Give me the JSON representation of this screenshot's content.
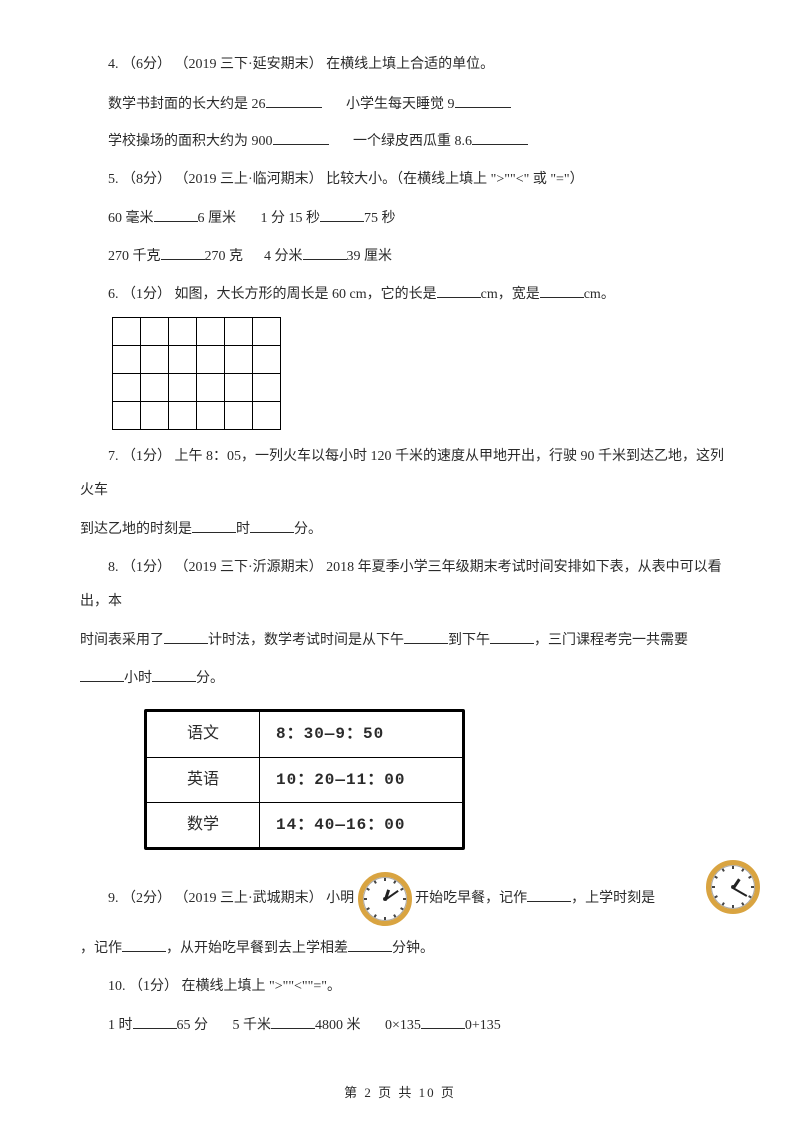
{
  "q4": {
    "prefix": "4.",
    "pts": "（6分）",
    "src": "（2019 三下·延安期末）",
    "tail": "在横线上填上合适的单位。",
    "a1": "数学书封面的长大约是 26",
    "a2": "小学生每天睡觉 9",
    "b1": "学校操场的面积大约为 900",
    "b2": "一个绿皮西瓜重 8.6"
  },
  "q5": {
    "prefix": "5.",
    "pts": "（8分）",
    "src": "（2019 三上·临河期末）",
    "tail": "比较大小。（在横线上填上 \">\"\"<\" 或 \"=\"）",
    "r1a": "60 毫米",
    "r1b": "6 厘米",
    "r1c": "1 分 15 秒",
    "r1d": "75 秒",
    "r2a": "270 千克",
    "r2b": "270 克",
    "r2c": "4 分米",
    "r2d": "39 厘米"
  },
  "q6": {
    "prefix": "6.",
    "pts": "（1分）",
    "t1": "如图，大长方形的周长是 60 cm，它的长是",
    "u1": "cm，宽是",
    "u2": "cm。",
    "rows": 4,
    "cols": 6
  },
  "q7": {
    "prefix": "7.",
    "pts": "（1分）",
    "text": "上午 8：05，一列火车以每小时 120 千米的速度从甲地开出，行驶 90 千米到达乙地，这列火车",
    "cont": "到达乙地的时刻是",
    "u1": "时",
    "u2": "分。"
  },
  "q8": {
    "prefix": "8.",
    "pts": "（1分）",
    "src": "（2019 三下·沂源期末）",
    "t": "2018 年夏季小学三年级期末考试时间安排如下表，从表中可以看出，本",
    "cont": "时间表采用了",
    "c1": "计时法，数学考试时间是从下午",
    "c2": "到下午",
    "c3": "，三门课程考完一共需要",
    "l1": "小时",
    "l2": "分。",
    "sched": {
      "rows": [
        [
          "语文",
          "8：30—9：50"
        ],
        [
          "英语",
          "10：20—11：00"
        ],
        [
          "数学",
          "14：40—16：00"
        ]
      ]
    }
  },
  "q9": {
    "prefix": "9.",
    "pts": "（2分）",
    "src": "（2019 三上·武城期末）",
    "p1": "小明",
    "p2": "开始吃早餐，记作",
    "p3": "，上学时刻是",
    "cont": "，记作",
    "c2": "，从开始吃早餐到去上学相差",
    "c3": "分钟。",
    "clock1": {
      "hour_deg": -72,
      "min_deg": -35
    },
    "clock2": {
      "hour_deg": -56,
      "min_deg": 30
    }
  },
  "q10": {
    "prefix": "10.",
    "pts": "（1分）",
    "tail": "在横线上填上 \">\"\"<\"\"=\"。",
    "r1a": "1 时",
    "r1b": "65 分",
    "r1c": "5 千米",
    "r1d": "4800 米",
    "r1e": "0×135",
    "r1f": "0+135"
  },
  "footer": {
    "a": "第",
    "p": "2",
    "b": "页 共",
    "t": "10",
    "c": "页"
  }
}
